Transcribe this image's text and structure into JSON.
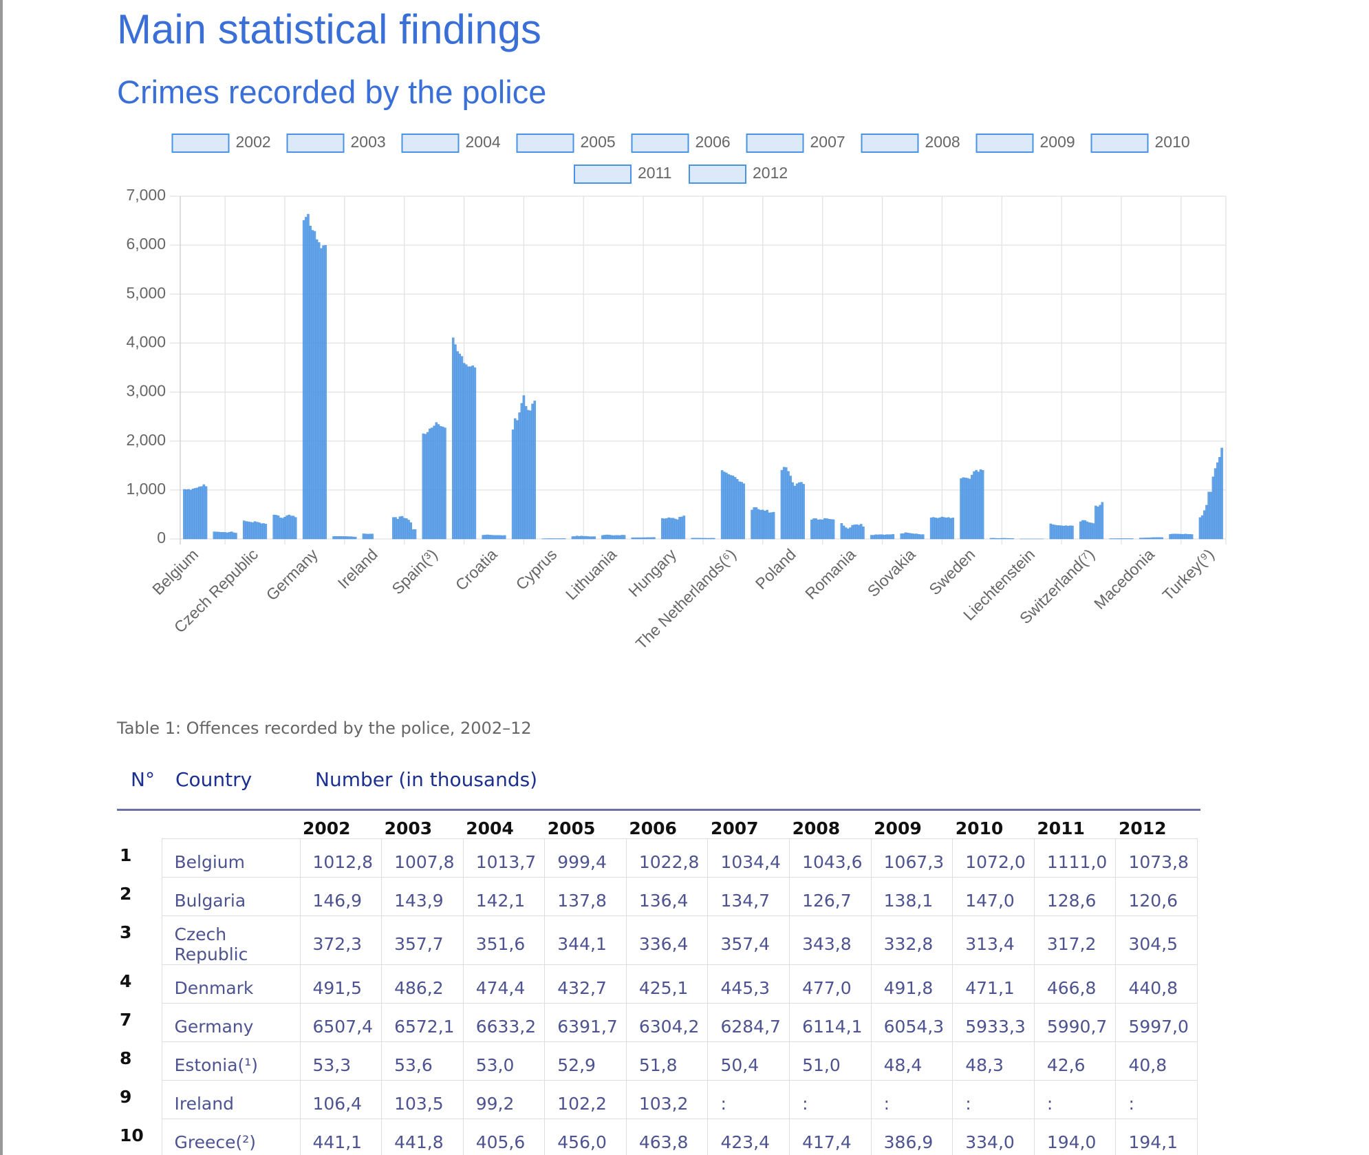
{
  "header": {
    "title": "Main statistical findings",
    "subtitle": "Crimes recorded by the police"
  },
  "chart_data": {
    "type": "bar",
    "categories": [
      "Belgium",
      null,
      "Czech Republic",
      null,
      "Germany",
      null,
      "Ireland",
      null,
      "Spain(³)",
      null,
      "Croatia",
      null,
      "Cyprus",
      null,
      "Lithuania",
      null,
      "Hungary",
      null,
      "The Netherlands(⁶)",
      null,
      "Poland",
      null,
      "Romania",
      null,
      "Slovakia",
      null,
      "Sweden",
      null,
      "Liechtenstein",
      null,
      "Switzerland(⁷)",
      null,
      "Macedonia",
      null,
      "Turkey(⁹)"
    ],
    "series": [
      {
        "name": "2002",
        "color": "#4a93e3",
        "values": [
          1012.8,
          146.9,
          372.3,
          491.5,
          6507.4,
          53.3,
          106.4,
          441.1,
          2150,
          4110,
          77,
          2230,
          5,
          50,
          72,
          27,
          420,
          17,
          1400,
          592,
          1404,
          392,
          320,
          77,
          107,
          434,
          1235,
          15,
          1,
          310,
          353,
          7,
          20,
          95,
          438
        ]
      },
      {
        "name": "2003",
        "color": "#4a93e3",
        "values": [
          1007.8,
          143.9,
          357.7,
          486.2,
          6572.1,
          53.6,
          103.5,
          441.8,
          2140,
          3970,
          80,
          2460,
          6,
          51,
          79,
          26,
          413,
          17,
          1370,
          643,
          1467,
          417,
          268,
          77,
          111,
          442,
          1255,
          18,
          1,
          293,
          380,
          7,
          20,
          100,
          478
        ]
      },
      {
        "name": "2004",
        "color": "#4a93e3",
        "values": [
          1013.7,
          142.1,
          351.6,
          474.4,
          6633.2,
          53,
          99.2,
          405.6,
          2180,
          3830,
          85,
          2420,
          7,
          62,
          84,
          27,
          419,
          18,
          1350,
          644,
          1461,
          416,
          232,
          87,
          131,
          433,
          1248,
          14,
          1,
          285,
          379,
          7,
          22,
          103,
          580
        ]
      },
      {
        "name": "2005",
        "color": "#4a93e3",
        "values": [
          999.4,
          137.8,
          344.1,
          432.7,
          6391.7,
          52.9,
          102.2,
          456,
          2250,
          3780,
          80,
          2580,
          8,
          52,
          82,
          27,
          436,
          18,
          1320,
          605,
          1380,
          391,
          208,
          85,
          123,
          423,
          1241,
          12,
          1,
          276,
          352,
          8,
          23,
          101,
          690
        ]
      },
      {
        "name": "2006",
        "color": "#4a93e3",
        "values": [
          1022.8,
          136.4,
          336.4,
          425.1,
          6304.2,
          51.8,
          103.2,
          463.8,
          2270,
          3730,
          77,
          2770,
          8,
          62,
          75,
          27,
          426,
          17,
          1300,
          589,
          1287,
          398,
          232,
          90,
          115,
          435,
          1225,
          12,
          1,
          275,
          335,
          8,
          23,
          100,
          960
        ]
      },
      {
        "name": "2007",
        "color": "#4a93e3",
        "values": [
          1034.4,
          134.7,
          357.4,
          445.3,
          6284.7,
          50.4,
          null,
          423.4,
          2310,
          3590,
          75,
          2930,
          8,
          55,
          70,
          28,
          426,
          16,
          1290,
          594,
          1153,
          391,
          281,
          88,
          110,
          450,
          1306,
          14,
          1,
          270,
          328,
          8,
          27,
          98,
          960
        ]
      },
      {
        "name": "2008",
        "color": "#4a93e3",
        "values": [
          1043.6,
          126.7,
          343.8,
          477,
          6114.1,
          51,
          null,
          417.4,
          2380,
          3560,
          73,
          2710,
          7,
          56,
          72,
          28,
          408,
          16,
          1260,
          572,
          1082,
          421,
          289,
          82,
          104,
          441,
          1377,
          16,
          1,
          264,
          316,
          8,
          30,
          96,
          1270
        ]
      },
      {
        "name": "2009",
        "color": "#4a93e3",
        "values": [
          1067.3,
          138.1,
          332.8,
          491.8,
          6054.3,
          48.4,
          null,
          386.9,
          2340,
          3520,
          75,
          2630,
          8,
          51,
          73,
          30,
          394,
          14,
          1220,
          591,
          1129,
          416,
          294,
          90,
          105,
          431,
          1405,
          13,
          1,
          273,
          676,
          8,
          30,
          101,
          1440
        ]
      },
      {
        "name": "2010",
        "color": "#4a93e3",
        "values": [
          1072,
          147,
          313.4,
          471.1,
          5933.3,
          48.3,
          null,
          334,
          2300,
          3520,
          72,
          2620,
          8,
          47,
          71,
          29,
          447,
          15,
          1170,
          535,
          1152,
          405,
          282,
          89,
          95,
          441,
          1370,
          13,
          1,
          262,
          656,
          8,
          30,
          97,
          1560
        ]
      },
      {
        "name": "2011",
        "color": "#4a93e3",
        "values": [
          1111,
          128.6,
          317.2,
          466.8,
          5990.7,
          42.6,
          null,
          194,
          2290,
          3540,
          70,
          2760,
          8,
          48,
          79,
          31,
          451,
          16,
          1160,
          540,
          1159,
          400,
          303,
          90,
          90,
          422,
          1417,
          11,
          1,
          270,
          692,
          8,
          30,
          95,
          1670
        ]
      },
      {
        "name": "2012",
        "color": "#4a93e3",
        "values": [
          1073.8,
          120.6,
          304.5,
          440.8,
          5997,
          40.8,
          null,
          194.1,
          2270,
          3500,
          72,
          2820,
          8,
          49,
          77,
          33,
          472,
          15,
          1130,
          548,
          1119,
          395,
          250,
          94,
          91,
          432,
          1403,
          10,
          1,
          268,
          750,
          8,
          30,
          92,
          1860
        ]
      }
    ],
    "ylim": [
      0,
      7000
    ],
    "yticks": [
      0,
      {
        "value": 1000,
        "label": "1,000"
      },
      {
        "value": 2000,
        "label": "2,000"
      },
      {
        "value": 3000,
        "label": "3,000"
      },
      {
        "value": 4000,
        "label": "4,000"
      },
      {
        "value": 5000,
        "label": "5,000"
      },
      {
        "value": 6000,
        "label": "6,000"
      },
      {
        "value": 7000,
        "label": "7,000"
      }
    ],
    "grid": true,
    "legend": "top"
  },
  "table": {
    "caption": "Table 1: Offences recorded by the police, 2002–12",
    "headers": [
      "N°",
      "Country",
      "Number (in thousands)"
    ],
    "years": [
      "2002",
      "2003",
      "2004",
      "2005",
      "2006",
      "2007",
      "2008",
      "2009",
      "2010",
      "2011",
      "2012"
    ],
    "rows": [
      [
        "1",
        "Belgium",
        "1012,8",
        "1007,8",
        "1013,7",
        "999,4",
        "1022,8",
        "1034,4",
        "1043,6",
        "1067,3",
        "1072,0",
        "1111,0",
        "1073,8"
      ],
      [
        "2",
        "Bulgaria",
        "146,9",
        "143,9",
        "142,1",
        "137,8",
        "136,4",
        "134,7",
        "126,7",
        "138,1",
        "147,0",
        "128,6",
        "120,6"
      ],
      [
        "3",
        "Czech Republic",
        "372,3",
        "357,7",
        "351,6",
        "344,1",
        "336,4",
        "357,4",
        "343,8",
        "332,8",
        "313,4",
        "317,2",
        "304,5"
      ],
      [
        "4",
        "Denmark",
        "491,5",
        "486,2",
        "474,4",
        "432,7",
        "425,1",
        "445,3",
        "477,0",
        "491,8",
        "471,1",
        "466,8",
        "440,8"
      ],
      [
        "7",
        "Germany",
        "6507,4",
        "6572,1",
        "6633,2",
        "6391,7",
        "6304,2",
        "6284,7",
        "6114,1",
        "6054,3",
        "5933,3",
        "5990,7",
        "5997,0"
      ],
      [
        "8",
        "Estonia(¹)",
        "53,3",
        "53,6",
        "53,0",
        "52,9",
        "51,8",
        "50,4",
        "51,0",
        "48,4",
        "48,3",
        "42,6",
        "40,8"
      ],
      [
        "9",
        "Ireland",
        "106,4",
        "103,5",
        "99,2",
        "102,2",
        "103,2",
        ":",
        ":",
        ":",
        ":",
        ":",
        ":"
      ],
      [
        "10",
        "Greece(²)",
        "441,1",
        "441,8",
        "405,6",
        "456,0",
        "463,8",
        "423,4",
        "417,4",
        "386,9",
        "334,0",
        "194,0",
        "194,1"
      ]
    ]
  }
}
